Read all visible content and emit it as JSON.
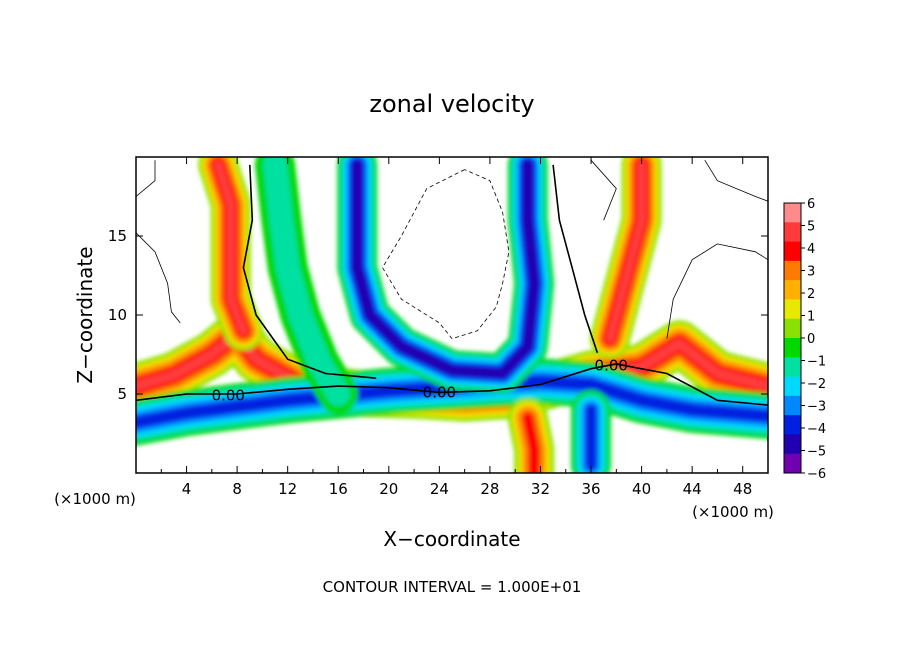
{
  "chart_data": {
    "type": "heatmap",
    "title": "zonal velocity",
    "xlabel": "X−coordinate",
    "ylabel": "Z−coordinate",
    "x_unit_label": "(×1000 m)",
    "x_unit_label_right": "(×1000 m)",
    "footer": "CONTOUR INTERVAL = 1.000E+01",
    "xlim": [
      0,
      50
    ],
    "ylim": [
      0,
      20
    ],
    "x_ticks": [
      4,
      8,
      12,
      16,
      20,
      24,
      28,
      32,
      36,
      40,
      44,
      48
    ],
    "x_tick_labels": [
      "4",
      "8",
      "12",
      "16",
      "20",
      "24",
      "28",
      "32",
      "36",
      "40",
      "44",
      "48"
    ],
    "y_ticks": [
      5,
      10,
      15
    ],
    "y_tick_labels": [
      "5",
      "10",
      "15"
    ],
    "contour_labels": [
      {
        "text": "0.00",
        "x": 7.3,
        "z": 4.9
      },
      {
        "text": "0.00",
        "x": 24.0,
        "z": 5.1
      },
      {
        "text": "0.00",
        "x": 37.6,
        "z": 6.8
      }
    ],
    "colorbar": {
      "levels": [
        6,
        5,
        4,
        3,
        2,
        1,
        0,
        -1,
        -2,
        -3,
        -4,
        -5,
        -6
      ],
      "labels": [
        "6",
        "5",
        "4",
        "3",
        "2",
        "1",
        "0",
        "−1",
        "−2",
        "−3",
        "−4",
        "−5",
        "−6"
      ],
      "colors": [
        "#ff8a8a",
        "#ff3a3a",
        "#ff0000",
        "#ff7a00",
        "#ffb000",
        "#e8e800",
        "#8ae000",
        "#00d800",
        "#00e0a0",
        "#00d8ff",
        "#0088ff",
        "#0020e0",
        "#2000b0",
        "#7000b0"
      ]
    },
    "features": [
      {
        "kind": "jet",
        "value": 4.5,
        "points": [
          [
            0,
            5.5
          ],
          [
            3,
            6.2
          ],
          [
            6,
            7.5
          ],
          [
            8,
            8.8
          ],
          [
            9.5,
            7.2
          ],
          [
            13,
            5.6
          ],
          [
            18,
            5.0
          ],
          [
            22,
            4.9
          ],
          [
            26,
            4.7
          ],
          [
            30,
            4.9
          ],
          [
            33,
            5.6
          ],
          [
            36,
            6.3
          ],
          [
            40,
            6.7
          ],
          [
            43,
            8.2
          ],
          [
            46,
            6.3
          ],
          [
            50,
            5.5
          ]
        ]
      },
      {
        "kind": "jet",
        "value": -4.0,
        "points": [
          [
            0,
            3.2
          ],
          [
            4,
            3.8
          ],
          [
            8,
            4.2
          ],
          [
            12,
            4.6
          ],
          [
            16,
            4.9
          ],
          [
            20,
            5.2
          ],
          [
            24,
            5.4
          ],
          [
            28,
            5.6
          ],
          [
            32,
            5.8
          ],
          [
            36,
            5.6
          ],
          [
            40,
            4.6
          ],
          [
            44,
            4.0
          ],
          [
            50,
            3.6
          ]
        ]
      },
      {
        "kind": "column",
        "value": 5.0,
        "points": [
          [
            6.5,
            19.5
          ],
          [
            7.5,
            17
          ],
          [
            7.5,
            14
          ],
          [
            7.5,
            11
          ],
          [
            8.5,
            9
          ]
        ]
      },
      {
        "kind": "column",
        "value": -1.0,
        "points": [
          [
            11,
            19.5
          ],
          [
            11.5,
            16
          ],
          [
            12,
            13
          ],
          [
            13,
            10
          ],
          [
            14.5,
            7
          ],
          [
            16,
            5
          ]
        ]
      },
      {
        "kind": "column",
        "value": -4.5,
        "points": [
          [
            17.5,
            19.5
          ],
          [
            17.5,
            16
          ],
          [
            17.5,
            13
          ],
          [
            18.5,
            10
          ],
          [
            21,
            8
          ],
          [
            25,
            6.5
          ],
          [
            29,
            6.3
          ],
          [
            31,
            8
          ],
          [
            31.5,
            12
          ],
          [
            31,
            16
          ],
          [
            31,
            19.5
          ]
        ]
      },
      {
        "kind": "column",
        "value": 4.5,
        "points": [
          [
            40,
            19.5
          ],
          [
            40,
            16
          ],
          [
            39,
            13
          ],
          [
            38,
            10
          ],
          [
            37.5,
            8.5
          ]
        ]
      },
      {
        "kind": "column",
        "value": -4.0,
        "points": [
          [
            36,
            4
          ],
          [
            36,
            2.5
          ],
          [
            36,
            0.5
          ]
        ]
      },
      {
        "kind": "column",
        "value": 4.0,
        "points": [
          [
            31,
            3.5
          ],
          [
            31.5,
            1.5
          ],
          [
            31.5,
            0
          ]
        ]
      }
    ]
  }
}
